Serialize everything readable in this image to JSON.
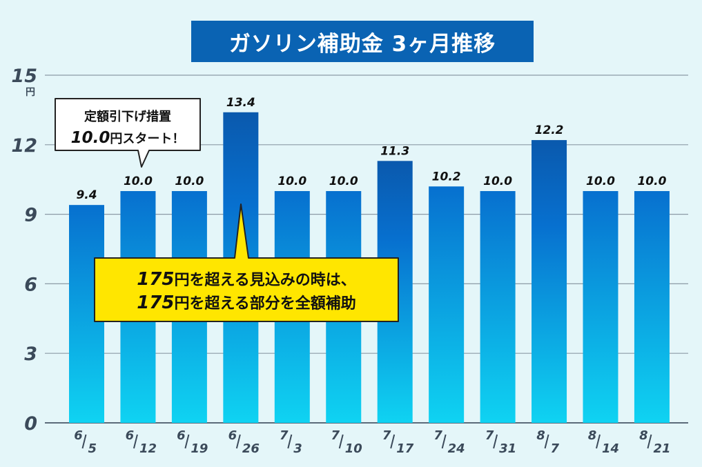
{
  "title": "ガソリン補助金 3ヶ月推移",
  "unit": "円",
  "callout_start": {
    "line1": "定額引下げ措置",
    "value": "10.0",
    "rest": "円スタート！"
  },
  "callout_rule": {
    "line1_value": "175",
    "line1_text": "円を超える見込みの時は、",
    "line2_value": "175",
    "line2_text": "円を超える部分を全額補助"
  },
  "colors": {
    "background": "#e4f6f9",
    "title_bg": "#0a63b3",
    "bar_top": "#0770cf",
    "bar_bottom": "#0fd3f2",
    "bar_top_highlight": "#0a59ad",
    "callout_yellow": "#ffe600",
    "axis_text": "#3b4a5a"
  },
  "chart_data": {
    "type": "bar",
    "title": "ガソリン補助金 3ヶ月推移",
    "xlabel": "",
    "ylabel": "",
    "ylim": [
      0,
      15
    ],
    "yticks": [
      0,
      3,
      6,
      9,
      12,
      15
    ],
    "grid": true,
    "categories": [
      {
        "m": "6",
        "d": "5"
      },
      {
        "m": "6",
        "d": "12"
      },
      {
        "m": "6",
        "d": "19"
      },
      {
        "m": "6",
        "d": "26"
      },
      {
        "m": "7",
        "d": "3"
      },
      {
        "m": "7",
        "d": "10"
      },
      {
        "m": "7",
        "d": "17"
      },
      {
        "m": "7",
        "d": "24"
      },
      {
        "m": "7",
        "d": "31"
      },
      {
        "m": "8",
        "d": "7"
      },
      {
        "m": "8",
        "d": "14"
      },
      {
        "m": "8",
        "d": "21"
      }
    ],
    "values": [
      9.4,
      10.0,
      10.0,
      13.4,
      10.0,
      10.0,
      11.3,
      10.2,
      10.0,
      12.2,
      10.0,
      10.0
    ],
    "labels": [
      "9.4",
      "10.0",
      "10.0",
      "13.4",
      "10.0",
      "10.0",
      "11.3",
      "10.2",
      "10.0",
      "12.2",
      "10.0",
      "10.0"
    ]
  }
}
